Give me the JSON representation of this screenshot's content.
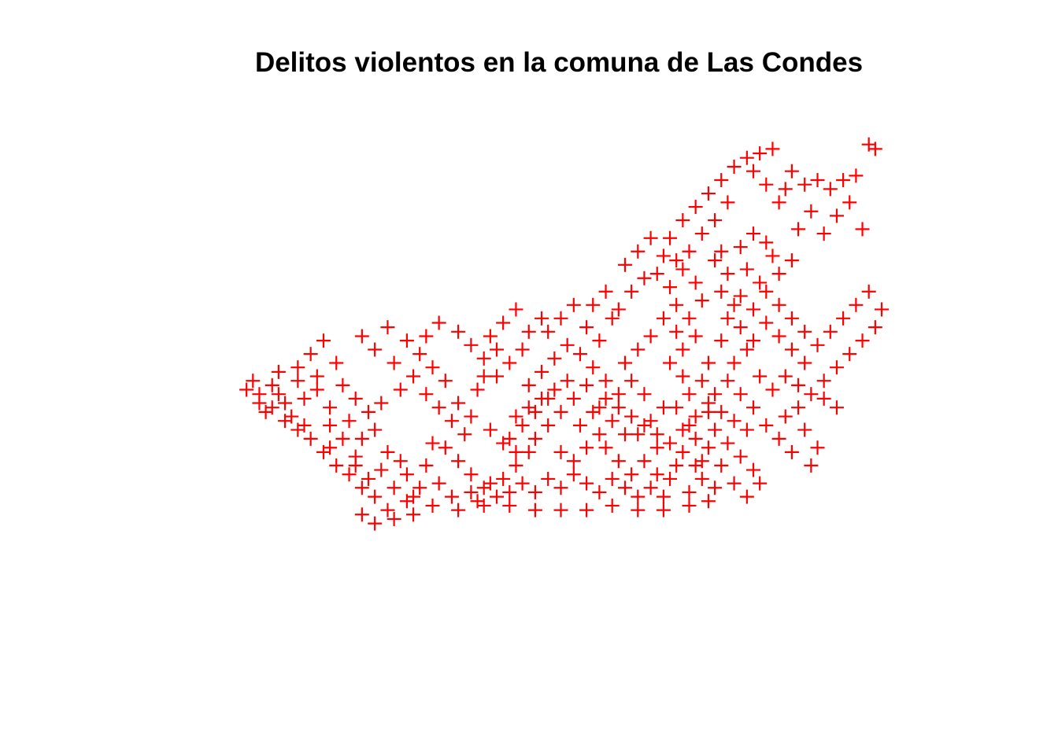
{
  "page": {
    "background": "#ffffff"
  },
  "chart_data": {
    "type": "scatter",
    "title": "Delitos violentos en la comuna de Las Condes",
    "xlabel": "",
    "ylabel": "",
    "axes_visible": false,
    "grid": false,
    "legend": "none",
    "marker": "plus",
    "marker_color": "#ff0000",
    "xlim": [
      0,
      100
    ],
    "ylim": [
      0,
      100
    ],
    "series": [
      {
        "values_note": "",
        "points": [
          [
            1,
            44
          ],
          [
            3,
            43
          ],
          [
            5,
            45
          ],
          [
            7,
            41
          ],
          [
            9,
            46
          ],
          [
            4,
            39
          ],
          [
            8,
            38
          ],
          [
            10,
            42
          ],
          [
            12,
            44
          ],
          [
            14,
            40
          ],
          [
            6,
            48
          ],
          [
            9,
            49
          ],
          [
            11,
            52
          ],
          [
            13,
            55
          ],
          [
            15,
            50
          ],
          [
            12,
            47
          ],
          [
            16,
            45
          ],
          [
            18,
            42
          ],
          [
            20,
            39
          ],
          [
            17,
            37
          ],
          [
            19,
            33
          ],
          [
            21,
            35
          ],
          [
            23,
            30
          ],
          [
            25,
            28
          ],
          [
            22,
            26
          ],
          [
            20,
            24
          ],
          [
            24,
            22
          ],
          [
            27,
            20
          ],
          [
            26,
            25
          ],
          [
            29,
            27
          ],
          [
            18,
            29
          ],
          [
            16,
            33
          ],
          [
            14,
            36
          ],
          [
            22,
            41
          ],
          [
            25,
            44
          ],
          [
            27,
            47
          ],
          [
            24,
            50
          ],
          [
            21,
            53
          ],
          [
            19,
            56
          ],
          [
            23,
            58
          ],
          [
            26,
            55
          ],
          [
            28,
            52
          ],
          [
            30,
            49
          ],
          [
            32,
            46
          ],
          [
            29,
            43
          ],
          [
            31,
            40
          ],
          [
            33,
            37
          ],
          [
            35,
            34
          ],
          [
            32,
            31
          ],
          [
            34,
            28
          ],
          [
            36,
            25
          ],
          [
            38,
            22
          ],
          [
            40,
            20
          ],
          [
            37,
            19
          ],
          [
            41,
            24
          ],
          [
            43,
            27
          ],
          [
            45,
            30
          ],
          [
            42,
            33
          ],
          [
            44,
            36
          ],
          [
            46,
            39
          ],
          [
            48,
            42
          ],
          [
            45,
            45
          ],
          [
            47,
            48
          ],
          [
            49,
            51
          ],
          [
            51,
            54
          ],
          [
            48,
            57
          ],
          [
            50,
            60
          ],
          [
            52,
            63
          ],
          [
            54,
            58
          ],
          [
            56,
            55
          ],
          [
            53,
            52
          ],
          [
            55,
            49
          ],
          [
            57,
            46
          ],
          [
            59,
            43
          ],
          [
            56,
            40
          ],
          [
            58,
            37
          ],
          [
            60,
            34
          ],
          [
            57,
            31
          ],
          [
            59,
            28
          ],
          [
            61,
            25
          ],
          [
            63,
            28
          ],
          [
            65,
            31
          ],
          [
            62,
            34
          ],
          [
            64,
            37
          ],
          [
            66,
            40
          ],
          [
            63,
            43
          ],
          [
            61,
            46
          ],
          [
            60,
            50
          ],
          [
            62,
            53
          ],
          [
            64,
            56
          ],
          [
            58,
            60
          ],
          [
            55,
            63
          ],
          [
            57,
            66
          ],
          [
            59,
            62
          ],
          [
            61,
            66
          ],
          [
            63,
            69
          ],
          [
            60,
            72
          ],
          [
            62,
            75
          ],
          [
            64,
            78
          ],
          [
            66,
            74
          ],
          [
            65,
            70
          ],
          [
            67,
            67
          ],
          [
            68,
            63
          ],
          [
            66,
            60
          ],
          [
            68,
            57
          ],
          [
            69,
            53
          ],
          [
            67,
            50
          ],
          [
            69,
            47
          ],
          [
            70,
            43
          ],
          [
            68,
            40
          ],
          [
            70,
            36
          ],
          [
            71,
            33
          ],
          [
            69,
            30
          ],
          [
            71,
            27
          ],
          [
            72,
            24
          ],
          [
            70,
            21
          ],
          [
            73,
            19
          ],
          [
            74,
            22
          ],
          [
            72,
            28
          ],
          [
            73,
            31
          ],
          [
            74,
            35
          ],
          [
            73,
            39
          ],
          [
            74,
            43
          ],
          [
            72,
            46
          ],
          [
            73,
            50
          ],
          [
            71,
            56
          ],
          [
            70,
            60
          ],
          [
            72,
            64
          ],
          [
            71,
            68
          ],
          [
            69,
            71
          ],
          [
            67,
            78
          ],
          [
            69,
            82
          ],
          [
            71,
            85
          ],
          [
            73,
            88
          ],
          [
            75,
            91
          ],
          [
            76,
            86
          ],
          [
            74,
            82
          ],
          [
            72,
            79
          ],
          [
            70,
            75
          ],
          [
            68,
            73
          ],
          [
            77,
            94
          ],
          [
            79,
            96
          ],
          [
            81,
            97
          ],
          [
            83,
            98
          ],
          [
            80,
            93
          ],
          [
            82,
            90
          ],
          [
            84,
            86
          ],
          [
            86,
            93
          ],
          [
            85,
            89
          ],
          [
            88,
            90
          ],
          [
            90,
            91
          ],
          [
            92,
            89
          ],
          [
            94,
            91
          ],
          [
            96,
            92
          ],
          [
            98,
            99
          ],
          [
            99,
            98
          ],
          [
            95,
            86
          ],
          [
            97,
            80
          ],
          [
            93,
            83
          ],
          [
            91,
            79
          ],
          [
            89,
            84
          ],
          [
            87,
            80
          ],
          [
            86,
            73
          ],
          [
            84,
            70
          ],
          [
            83,
            74
          ],
          [
            81,
            68
          ],
          [
            79,
            71
          ],
          [
            78,
            65
          ],
          [
            80,
            62
          ],
          [
            82,
            59
          ],
          [
            84,
            56
          ],
          [
            86,
            53
          ],
          [
            88,
            50
          ],
          [
            90,
            54
          ],
          [
            92,
            57
          ],
          [
            94,
            60
          ],
          [
            96,
            63
          ],
          [
            98,
            66
          ],
          [
            100,
            62
          ],
          [
            99,
            58
          ],
          [
            97,
            55
          ],
          [
            95,
            52
          ],
          [
            93,
            49
          ],
          [
            91,
            46
          ],
          [
            89,
            43
          ],
          [
            87,
            40
          ],
          [
            85,
            38
          ],
          [
            88,
            35
          ],
          [
            90,
            31
          ],
          [
            89,
            27
          ],
          [
            86,
            30
          ],
          [
            84,
            33
          ],
          [
            82,
            36
          ],
          [
            80,
            40
          ],
          [
            78,
            43
          ],
          [
            76,
            46
          ],
          [
            77,
            50
          ],
          [
            79,
            53
          ],
          [
            81,
            47
          ],
          [
            83,
            44
          ],
          [
            85,
            47
          ],
          [
            87,
            45
          ],
          [
            91,
            42
          ],
          [
            93,
            40
          ],
          [
            88,
            57
          ],
          [
            86,
            60
          ],
          [
            84,
            63
          ],
          [
            82,
            66
          ],
          [
            80,
            55
          ],
          [
            78,
            58
          ],
          [
            75,
            55
          ],
          [
            76,
            60
          ],
          [
            77,
            63
          ],
          [
            75,
            66
          ],
          [
            76,
            70
          ],
          [
            74,
            73
          ],
          [
            75,
            75
          ],
          [
            78,
            76
          ],
          [
            80,
            79
          ],
          [
            82,
            77
          ],
          [
            66,
            20
          ],
          [
            67,
            24
          ],
          [
            68,
            27
          ],
          [
            65,
            25
          ],
          [
            64,
            22
          ],
          [
            62,
            20
          ],
          [
            60,
            22
          ],
          [
            58,
            24
          ],
          [
            56,
            21
          ],
          [
            54,
            23
          ],
          [
            52,
            25
          ],
          [
            50,
            22
          ],
          [
            48,
            24
          ],
          [
            46,
            21
          ],
          [
            44,
            23
          ],
          [
            42,
            21
          ],
          [
            39,
            23
          ],
          [
            36,
            21
          ],
          [
            33,
            20
          ],
          [
            31,
            23
          ],
          [
            28,
            22
          ],
          [
            26,
            19
          ],
          [
            23,
            17
          ],
          [
            21,
            20
          ],
          [
            19,
            22
          ],
          [
            17,
            25
          ],
          [
            15,
            27
          ],
          [
            13,
            30
          ],
          [
            11,
            33
          ],
          [
            9,
            35
          ],
          [
            7,
            37
          ],
          [
            5,
            40
          ],
          [
            3,
            41
          ],
          [
            2,
            46
          ],
          [
            6,
            43
          ],
          [
            10,
            36
          ],
          [
            14,
            31
          ],
          [
            18,
            27
          ],
          [
            30,
            32
          ],
          [
            34,
            41
          ],
          [
            37,
            44
          ],
          [
            40,
            47
          ],
          [
            38,
            51
          ],
          [
            36,
            54
          ],
          [
            34,
            57
          ],
          [
            31,
            59
          ],
          [
            29,
            56
          ],
          [
            39,
            56
          ],
          [
            41,
            59
          ],
          [
            43,
            62
          ],
          [
            45,
            57
          ],
          [
            47,
            60
          ],
          [
            44,
            53
          ],
          [
            42,
            50
          ],
          [
            40,
            53
          ],
          [
            38,
            47
          ],
          [
            36,
            38
          ],
          [
            39,
            35
          ],
          [
            41,
            32
          ],
          [
            43,
            30
          ],
          [
            46,
            33
          ],
          [
            48,
            36
          ],
          [
            50,
            39
          ],
          [
            52,
            42
          ],
          [
            54,
            45
          ],
          [
            51,
            46
          ],
          [
            49,
            44
          ],
          [
            47,
            42
          ],
          [
            45,
            40
          ],
          [
            43,
            38
          ],
          [
            50,
            30
          ],
          [
            52,
            28
          ],
          [
            54,
            31
          ],
          [
            56,
            34
          ],
          [
            53,
            36
          ],
          [
            55,
            39
          ],
          [
            57,
            42
          ],
          [
            59,
            40
          ],
          [
            61,
            38
          ],
          [
            63,
            36
          ],
          [
            65,
            34
          ],
          [
            67,
            32
          ],
          [
            69,
            35
          ],
          [
            71,
            38
          ],
          [
            73,
            41
          ],
          [
            75,
            39
          ],
          [
            77,
            37
          ],
          [
            79,
            35
          ],
          [
            76,
            32
          ],
          [
            78,
            29
          ],
          [
            80,
            26
          ],
          [
            81,
            23
          ],
          [
            79,
            20
          ],
          [
            77,
            23
          ],
          [
            75,
            27
          ],
          [
            70,
            18
          ],
          [
            66,
            17
          ],
          [
            62,
            17
          ],
          [
            58,
            18
          ],
          [
            54,
            17
          ],
          [
            50,
            17
          ],
          [
            46,
            17
          ],
          [
            42,
            18
          ],
          [
            38,
            18
          ],
          [
            34,
            17
          ],
          [
            30,
            18
          ],
          [
            27,
            16
          ],
          [
            24,
            15
          ],
          [
            21,
            14
          ],
          [
            19,
            16
          ]
        ]
      }
    ]
  }
}
